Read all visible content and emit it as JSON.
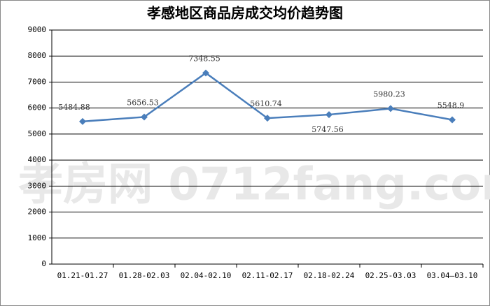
{
  "chart_data": {
    "type": "line",
    "title": "孝感地区商品房成交均价趋势图",
    "watermark": "孝房网 0712fang.com",
    "categories": [
      "01.21-01.27",
      "01.28-02.03",
      "02.04-02.10",
      "02.11-02.17",
      "02.18-02.24",
      "02.25-03.03",
      "03.04—03.10"
    ],
    "series": [
      {
        "name": "均价",
        "color": "#4a7ebb",
        "values": [
          5484.88,
          5656.53,
          7348.55,
          5610.74,
          5747.56,
          5980.23,
          5548.9
        ]
      }
    ],
    "ylim": [
      0,
      9000
    ],
    "yticks": [
      0,
      1000,
      2000,
      3000,
      4000,
      5000,
      6000,
      7000,
      8000,
      9000
    ],
    "grid": true
  }
}
